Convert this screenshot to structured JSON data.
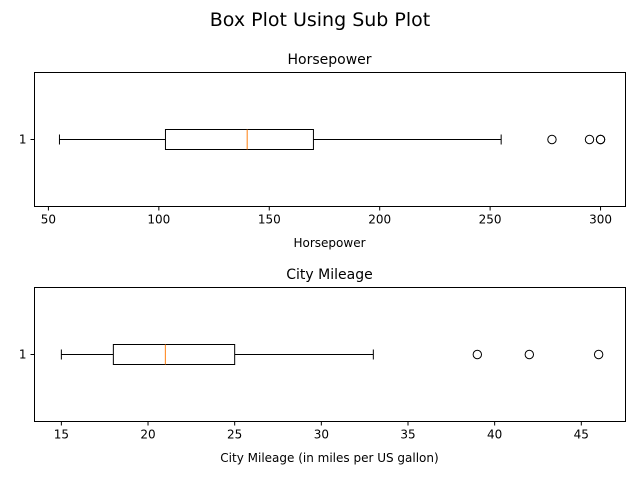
{
  "figure": {
    "title": "Box Plot Using Sub Plot"
  },
  "chart_data": [
    {
      "type": "box",
      "orientation": "horizontal",
      "title": "Horsepower",
      "xlabel": "Horsepower",
      "ylabel": "",
      "xlim": [
        43.7,
        311.3
      ],
      "xticks": [
        50,
        100,
        150,
        200,
        250,
        300
      ],
      "ytick_labels": [
        "1"
      ],
      "grid": false,
      "box": {
        "whisker_low": 55,
        "q1": 103,
        "median": 140,
        "q3": 170,
        "whisker_high": 255,
        "outliers": [
          278,
          295,
          300,
          300
        ]
      }
    },
    {
      "type": "box",
      "orientation": "horizontal",
      "title": "City Mileage",
      "xlabel": "City Mileage (in miles per US gallon)",
      "ylabel": "",
      "xlim": [
        13.45,
        47.55
      ],
      "xticks": [
        15,
        20,
        25,
        30,
        35,
        40,
        45
      ],
      "ytick_labels": [
        "1"
      ],
      "grid": false,
      "box": {
        "whisker_low": 15,
        "q1": 18,
        "median": 21,
        "q3": 25,
        "whisker_high": 33,
        "outliers": [
          39,
          42,
          46
        ]
      }
    }
  ],
  "colors": {
    "box_edge": "#000000",
    "median": "#ff7f0e",
    "outlier_edge": "#000000",
    "background": "#ffffff"
  }
}
